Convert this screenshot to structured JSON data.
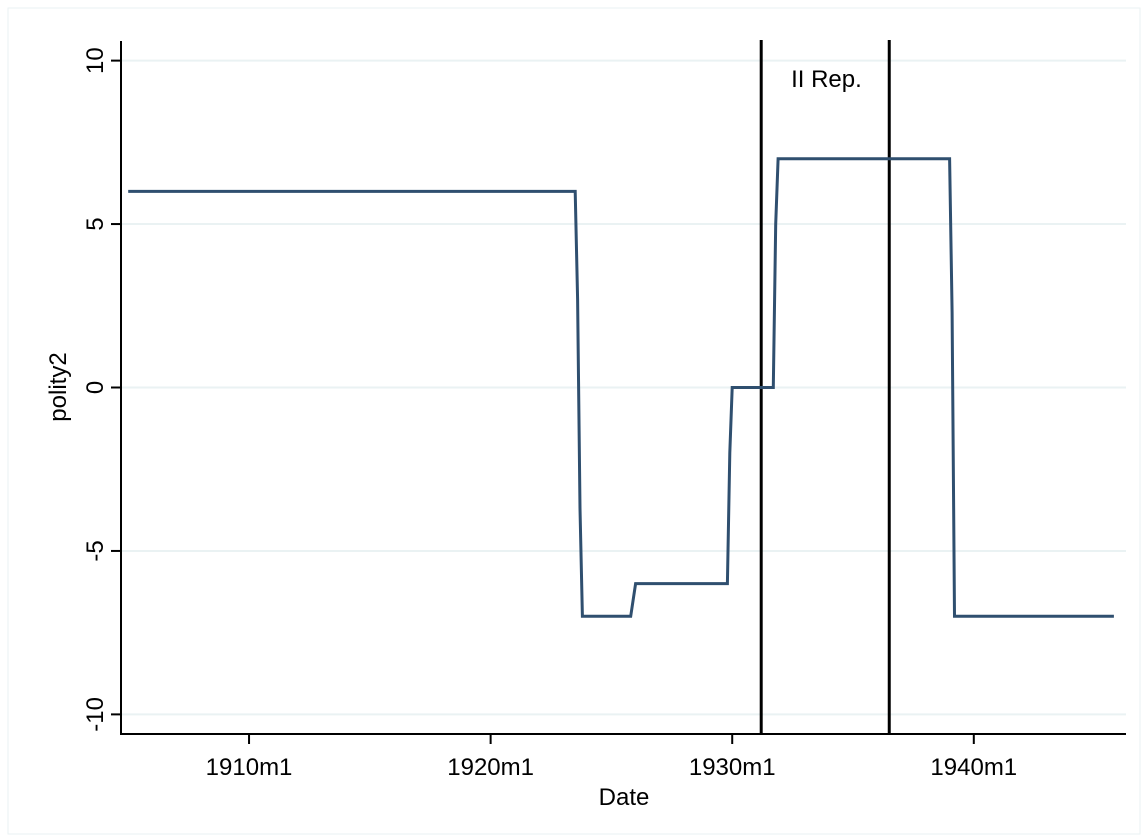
{
  "chart_data": {
    "type": "line",
    "title": "",
    "xlabel": "Date",
    "ylabel": "polity2",
    "x_unit": "year",
    "xlim": [
      1904.7,
      1946.3
    ],
    "ylim": [
      -10.6,
      10.6
    ],
    "x_ticks": [
      {
        "value": 1910,
        "label": "1910m1"
      },
      {
        "value": 1920,
        "label": "1920m1"
      },
      {
        "value": 1930,
        "label": "1930m1"
      },
      {
        "value": 1940,
        "label": "1940m1"
      }
    ],
    "y_ticks": [
      {
        "value": 10,
        "label": "10"
      },
      {
        "value": 5,
        "label": "5"
      },
      {
        "value": 0,
        "label": "0"
      },
      {
        "value": -5,
        "label": "-5"
      },
      {
        "value": -10,
        "label": "-10"
      }
    ],
    "grid": "horizontal",
    "series": [
      {
        "color": "#2f4f6f",
        "x": [
          1905.0,
          1923.5,
          1923.6,
          1923.7,
          1923.8,
          1925.8,
          1926.0,
          1929.8,
          1929.9,
          1930.0,
          1931.7,
          1931.8,
          1931.9,
          1932.0,
          1939.0,
          1939.1,
          1939.2,
          1945.8
        ],
        "y": [
          6,
          6,
          2.7,
          -3.7,
          -7,
          -7,
          -6,
          -6,
          -2,
          0,
          0,
          5,
          7,
          7,
          7,
          2.3,
          -7,
          -7
        ]
      }
    ],
    "vlines": [
      {
        "x": 1931.2,
        "color": "#000000"
      },
      {
        "x": 1936.5,
        "color": "#000000"
      }
    ],
    "annotations": [
      {
        "text": "II Rep.",
        "x": 1933.9,
        "y": 9.2
      }
    ]
  }
}
